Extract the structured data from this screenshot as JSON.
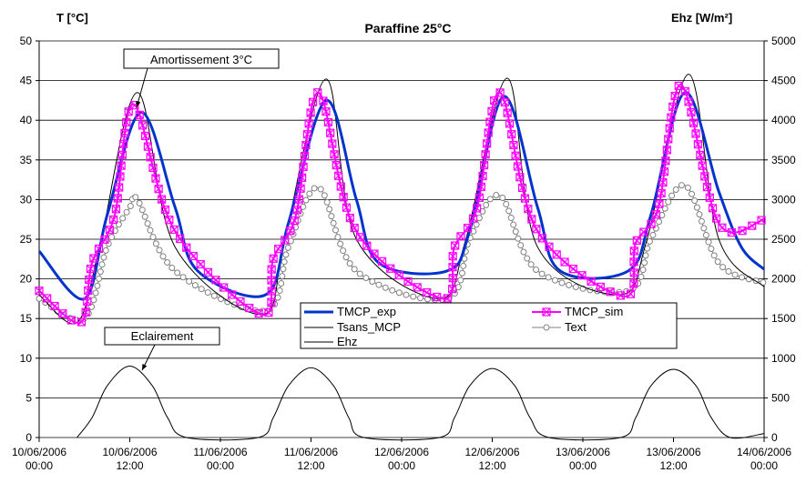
{
  "chart_data": {
    "type": "line",
    "title": "Paraffine 25°C",
    "ylabel_left": "T [°C]",
    "ylabel_right": "Ehz [W/m²]",
    "ylim_left": [
      0,
      50
    ],
    "ylim_right": [
      0,
      5000
    ],
    "yticks_left": [
      "0",
      "5",
      "10",
      "15",
      "20",
      "25",
      "30",
      "35",
      "40",
      "45",
      "50"
    ],
    "yticks_right": [
      "0",
      "500",
      "1000",
      "1500",
      "2000",
      "2500",
      "3000",
      "3500",
      "4000",
      "4500",
      "5000"
    ],
    "xlim": [
      "10/06/2006 00:00",
      "14/06/2006 00:00"
    ],
    "xtick_labels": [
      [
        "10/06/2006",
        "00:00"
      ],
      [
        "10/06/2006",
        "12:00"
      ],
      [
        "11/06/2006",
        "00:00"
      ],
      [
        "11/06/2006",
        "12:00"
      ],
      [
        "12/06/2006",
        "00:00"
      ],
      [
        "12/06/2006",
        "12:00"
      ],
      [
        "13/06/2006",
        "00:00"
      ],
      [
        "13/06/2006",
        "12:00"
      ],
      [
        "14/06/2006",
        "00:00"
      ]
    ],
    "grid": "horizontal",
    "legend_position": "lower-right",
    "annotations": [
      "Amortissement 3°C",
      "Eclairement"
    ],
    "series": [
      {
        "name": "TMCP_exp",
        "axis": "left",
        "color": "#0033cc",
        "x": [
          "10/06/2006 00:00",
          "10/06/2006 06:00",
          "10/06/2006 09:00",
          "10/06/2006 13:30",
          "10/06/2006 18:00",
          "10/06/2006 21:00",
          "11/06/2006 06:00",
          "11/06/2006 09:00",
          "11/06/2006 14:00",
          "11/06/2006 18:00",
          "11/06/2006 21:00",
          "12/06/2006 06:00",
          "12/06/2006 09:00",
          "12/06/2006 13:30",
          "12/06/2006 18:00",
          "12/06/2006 21:00",
          "13/06/2006 06:00",
          "13/06/2006 09:00",
          "13/06/2006 13:30",
          "13/06/2006 18:00",
          "13/06/2006 21:00",
          "14/06/2006 00:00"
        ],
        "y": [
          23.5,
          17.5,
          28,
          41,
          29,
          21,
          18,
          27,
          42.5,
          30,
          22,
          21,
          26,
          43,
          29,
          21,
          21,
          28,
          43.5,
          31,
          24,
          21.2
        ]
      },
      {
        "name": "TMCP_sim",
        "axis": "left",
        "color": "#ff00ff",
        "x": [
          "10/06/2006 00:00",
          "10/06/2006 05:30",
          "10/06/2006 07:00",
          "10/06/2006 10:00",
          "10/06/2006 12:30",
          "10/06/2006 18:00",
          "11/06/2006 05:30",
          "11/06/2006 07:00",
          "11/06/2006 10:00",
          "11/06/2006 13:00",
          "11/06/2006 18:00",
          "12/06/2006 05:30",
          "12/06/2006 07:00",
          "12/06/2006 10:00",
          "12/06/2006 13:00",
          "12/06/2006 18:00",
          "13/06/2006 05:30",
          "13/06/2006 07:00",
          "13/06/2006 10:00",
          "13/06/2006 13:00",
          "13/06/2006 18:00",
          "14/06/2006 00:00"
        ],
        "y": [
          18.5,
          14.5,
          22,
          28,
          42,
          26,
          15.5,
          22.5,
          28,
          43.5,
          26,
          17.5,
          24,
          29,
          43.5,
          26,
          17.8,
          24.5,
          29,
          44.5,
          27,
          27.5
        ]
      },
      {
        "name": "Tsans_MCP",
        "axis": "left",
        "color": "#000000",
        "x": [
          "10/06/2006 00:00",
          "10/06/2006 05:00",
          "10/06/2006 08:00",
          "10/06/2006 13:00",
          "10/06/2006 18:00",
          "11/06/2006 05:30",
          "11/06/2006 08:30",
          "11/06/2006 14:00",
          "11/06/2006 18:00",
          "12/06/2006 05:00",
          "12/06/2006 08:30",
          "12/06/2006 14:00",
          "12/06/2006 18:00",
          "13/06/2006 05:00",
          "13/06/2006 08:30",
          "13/06/2006 14:00",
          "13/06/2006 18:00",
          "14/06/2006 00:00"
        ],
        "y": [
          18,
          14.5,
          24,
          43.5,
          24,
          15.5,
          25,
          45.2,
          25,
          17.5,
          25,
          45.3,
          24,
          18,
          25,
          45.8,
          25,
          19
        ]
      },
      {
        "name": "Text",
        "axis": "left",
        "color": "#808080",
        "x": [
          "10/06/2006 00:00",
          "10/06/2006 06:00",
          "10/06/2006 09:00",
          "10/06/2006 12:00",
          "10/06/2006 13:00",
          "10/06/2006 18:00",
          "11/06/2006 06:00",
          "11/06/2006 09:00",
          "11/06/2006 13:00",
          "11/06/2006 18:00",
          "12/06/2006 06:00",
          "12/06/2006 09:00",
          "12/06/2006 13:00",
          "12/06/2006 18:00",
          "13/06/2006 06:00",
          "13/06/2006 09:00",
          "13/06/2006 13:30",
          "13/06/2006 18:00",
          "14/06/2006 00:00"
        ],
        "y": [
          17.5,
          15,
          24,
          29,
          30,
          21,
          16,
          24,
          31.5,
          21,
          17.5,
          25,
          30.5,
          21,
          18.5,
          25,
          31.8,
          22,
          19.5
        ]
      },
      {
        "name": "Ehz",
        "axis": "right",
        "color": "#000000",
        "x": [
          "10/06/2006 05:00",
          "10/06/2006 07:00",
          "10/06/2006 09:00",
          "10/06/2006 12:00",
          "10/06/2006 15:00",
          "10/06/2006 17:00",
          "10/06/2006 19:30",
          "11/06/2006 05:00",
          "11/06/2006 07:00",
          "11/06/2006 09:00",
          "11/06/2006 12:00",
          "11/06/2006 15:00",
          "11/06/2006 17:00",
          "11/06/2006 19:00",
          "12/06/2006 05:00",
          "12/06/2006 07:00",
          "12/06/2006 09:00",
          "12/06/2006 12:00",
          "12/06/2006 15:00",
          "12/06/2006 17:00",
          "12/06/2006 19:30",
          "13/06/2006 05:00",
          "13/06/2006 07:00",
          "13/06/2006 09:00",
          "13/06/2006 12:00",
          "13/06/2006 15:00",
          "13/06/2006 17:00",
          "13/06/2006 19:30",
          "14/06/2006 00:00"
        ],
        "y": [
          0,
          250,
          650,
          900,
          650,
          250,
          0,
          0,
          250,
          650,
          880,
          650,
          250,
          0,
          0,
          250,
          650,
          870,
          650,
          250,
          0,
          0,
          250,
          650,
          860,
          650,
          250,
          0,
          50
        ]
      }
    ]
  }
}
